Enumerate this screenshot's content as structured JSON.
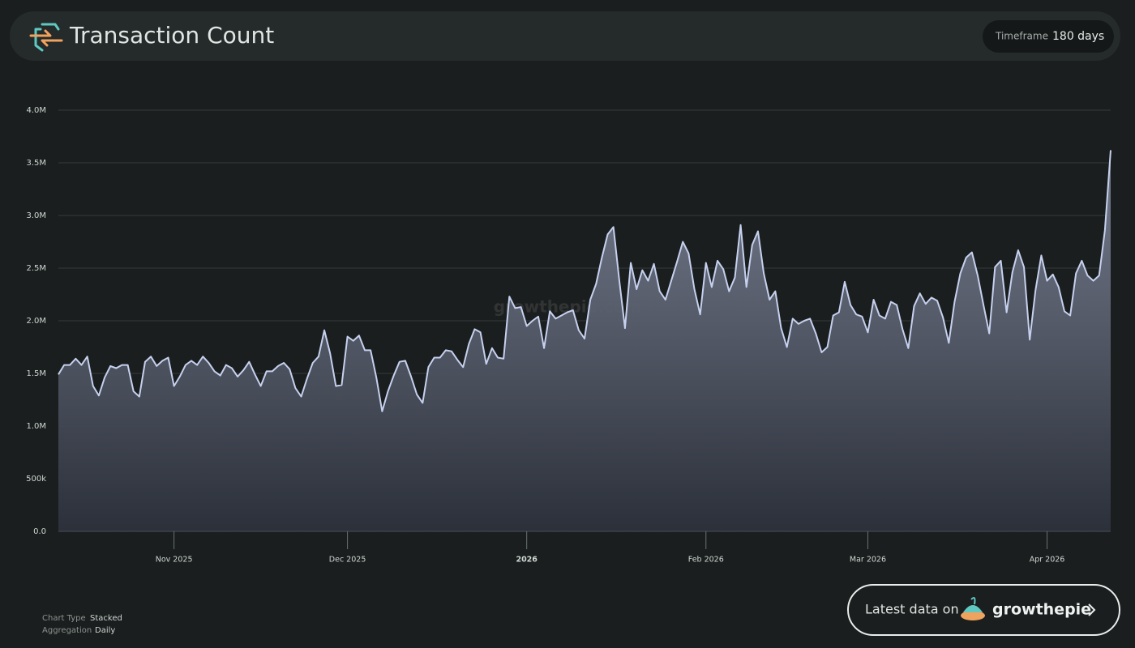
{
  "header": {
    "title": "Transaction Count",
    "timeframe_label": "Timeframe",
    "timeframe_value": "180 days"
  },
  "chart_data": {
    "type": "area",
    "color": "#c6d1ef",
    "watermark": "growthepie.com",
    "grid": true,
    "values": [
      1490000,
      1580000,
      1580000,
      1640000,
      1580000,
      1660000,
      1380000,
      1290000,
      1460000,
      1570000,
      1550000,
      1580000,
      1580000,
      1330000,
      1280000,
      1610000,
      1660000,
      1570000,
      1620000,
      1650000,
      1380000,
      1470000,
      1580000,
      1620000,
      1580000,
      1660000,
      1600000,
      1520000,
      1480000,
      1580000,
      1550000,
      1470000,
      1530000,
      1610000,
      1490000,
      1380000,
      1520000,
      1520000,
      1570000,
      1600000,
      1540000,
      1360000,
      1280000,
      1450000,
      1600000,
      1660000,
      1910000,
      1690000,
      1380000,
      1390000,
      1850000,
      1810000,
      1860000,
      1720000,
      1720000,
      1460000,
      1140000,
      1330000,
      1480000,
      1610000,
      1620000,
      1470000,
      1300000,
      1220000,
      1560000,
      1650000,
      1650000,
      1720000,
      1710000,
      1630000,
      1560000,
      1780000,
      1920000,
      1890000,
      1590000,
      1740000,
      1650000,
      1640000,
      2230000,
      2120000,
      2130000,
      1950000,
      2000000,
      2040000,
      1740000,
      2090000,
      2020000,
      2050000,
      2080000,
      2100000,
      1910000,
      1830000,
      2200000,
      2350000,
      2600000,
      2820000,
      2890000,
      2390000,
      1930000,
      2550000,
      2300000,
      2480000,
      2380000,
      2540000,
      2280000,
      2200000,
      2380000,
      2560000,
      2750000,
      2640000,
      2300000,
      2060000,
      2550000,
      2320000,
      2570000,
      2490000,
      2280000,
      2410000,
      2910000,
      2320000,
      2720000,
      2850000,
      2450000,
      2200000,
      2280000,
      1930000,
      1750000,
      2020000,
      1970000,
      2000000,
      2020000,
      1880000,
      1700000,
      1750000,
      2050000,
      2080000,
      2370000,
      2150000,
      2060000,
      2040000,
      1890000,
      2200000,
      2050000,
      2020000,
      2180000,
      2150000,
      1920000,
      1740000,
      2140000,
      2260000,
      2160000,
      2220000,
      2190000,
      2030000,
      1790000,
      2180000,
      2450000,
      2600000,
      2650000,
      2430000,
      2150000,
      1880000,
      2510000,
      2570000,
      2080000,
      2460000,
      2670000,
      2510000,
      1820000,
      2290000,
      2620000,
      2380000,
      2440000,
      2320000,
      2090000,
      2050000,
      2450000,
      2570000,
      2430000,
      2380000,
      2430000,
      2860000,
      3620000
    ],
    "ylim": [
      0,
      4000000
    ],
    "yticks": [
      {
        "value": 0,
        "label": "0.0"
      },
      {
        "value": 500000,
        "label": "500k"
      },
      {
        "value": 1000000,
        "label": "1.0M"
      },
      {
        "value": 1500000,
        "label": "1.5M"
      },
      {
        "value": 2000000,
        "label": "2.0M"
      },
      {
        "value": 2500000,
        "label": "2.5M"
      },
      {
        "value": 3000000,
        "label": "3.0M"
      },
      {
        "value": 3500000,
        "label": "3.5M"
      },
      {
        "value": 4000000,
        "label": "4.0M"
      }
    ],
    "xticks": [
      {
        "value": 20,
        "label": "Nov 2025"
      },
      {
        "value": 50,
        "label": "Dec 2025"
      },
      {
        "value": 81,
        "label": "2026"
      },
      {
        "value": 112,
        "label": "Feb 2026"
      },
      {
        "value": 140,
        "label": "Mar 2026"
      },
      {
        "value": 171,
        "label": "Apr 2026"
      }
    ]
  },
  "footer": {
    "chart_type_label": "Chart Type",
    "chart_type_value": "Stacked",
    "aggregation_label": "Aggregation",
    "aggregation_value": "Daily",
    "cta_text": "Latest data on",
    "cta_brand": "growthepie"
  }
}
